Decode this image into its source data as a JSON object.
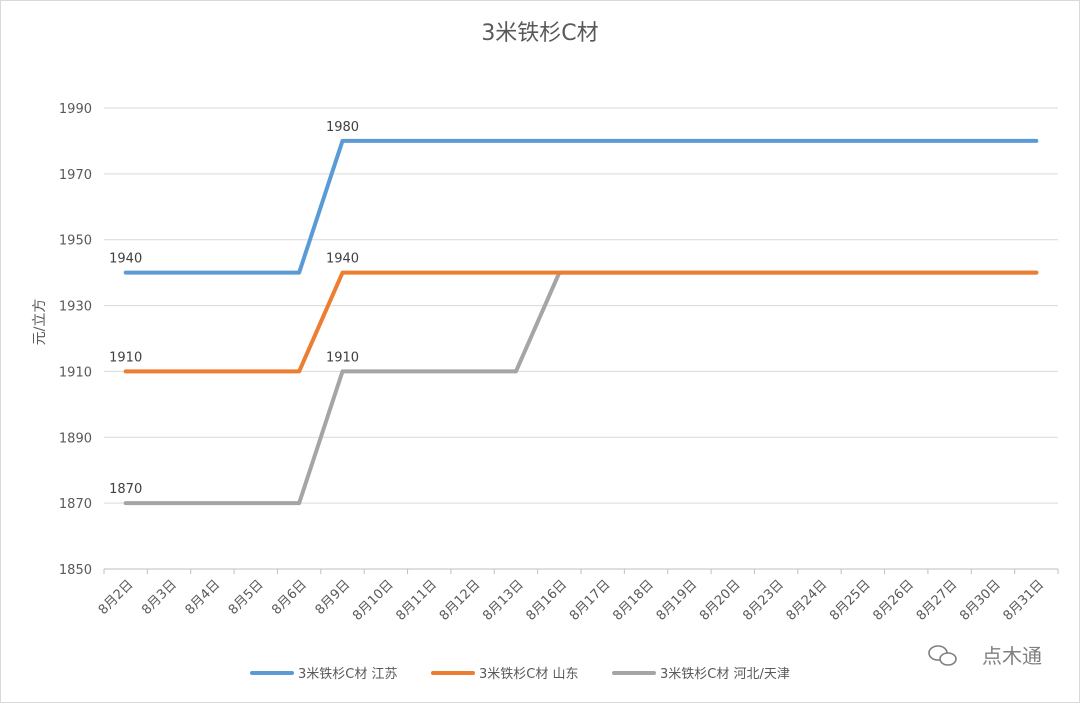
{
  "chart_data": {
    "type": "line",
    "title": "3米铁杉C材",
    "ylabel": "元/立方",
    "ylim": [
      1850,
      1990
    ],
    "yticks": [
      1850,
      1870,
      1890,
      1910,
      1930,
      1950,
      1970,
      1990
    ],
    "grid": true,
    "legend_position": "bottom",
    "categories": [
      "8月2日",
      "8月3日",
      "8月4日",
      "8月5日",
      "8月6日",
      "8月9日",
      "8月10日",
      "8月11日",
      "8月12日",
      "8月13日",
      "8月16日",
      "8月17日",
      "8月18日",
      "8月19日",
      "8月20日",
      "8月23日",
      "8月24日",
      "8月25日",
      "8月26日",
      "8月27日",
      "8月30日",
      "8月31日"
    ],
    "series": [
      {
        "name": "3米铁杉C材 江苏",
        "color": "#5b9bd5",
        "values": [
          1940,
          1940,
          1940,
          1940,
          1940,
          1980,
          1980,
          1980,
          1980,
          1980,
          1980,
          1980,
          1980,
          1980,
          1980,
          1980,
          1980,
          1980,
          1980,
          1980,
          1980,
          1980
        ]
      },
      {
        "name": "3米铁杉C材 山东",
        "color": "#ed7d31",
        "values": [
          1910,
          1910,
          1910,
          1910,
          1910,
          1940,
          1940,
          1940,
          1940,
          1940,
          1940,
          1940,
          1940,
          1940,
          1940,
          1940,
          1940,
          1940,
          1940,
          1940,
          1940,
          1940
        ]
      },
      {
        "name": "3米铁杉C材 河北/天津",
        "color": "#a5a5a5",
        "values": [
          1870,
          1870,
          1870,
          1870,
          1870,
          1910,
          1910,
          1910,
          1910,
          1910,
          1940,
          1940,
          1940,
          1940,
          1940,
          1940,
          1940,
          1940,
          1940,
          1940,
          1940,
          1940
        ]
      }
    ],
    "data_labels": [
      {
        "series": 0,
        "index": 0,
        "text": "1940"
      },
      {
        "series": 0,
        "index": 5,
        "text": "1980"
      },
      {
        "series": 1,
        "index": 0,
        "text": "1910"
      },
      {
        "series": 1,
        "index": 5,
        "text": "1940"
      },
      {
        "series": 2,
        "index": 0,
        "text": "1870"
      },
      {
        "series": 2,
        "index": 5,
        "text": "1910"
      }
    ]
  },
  "watermark": {
    "text": "点木通",
    "icon": "wechat-icon"
  }
}
